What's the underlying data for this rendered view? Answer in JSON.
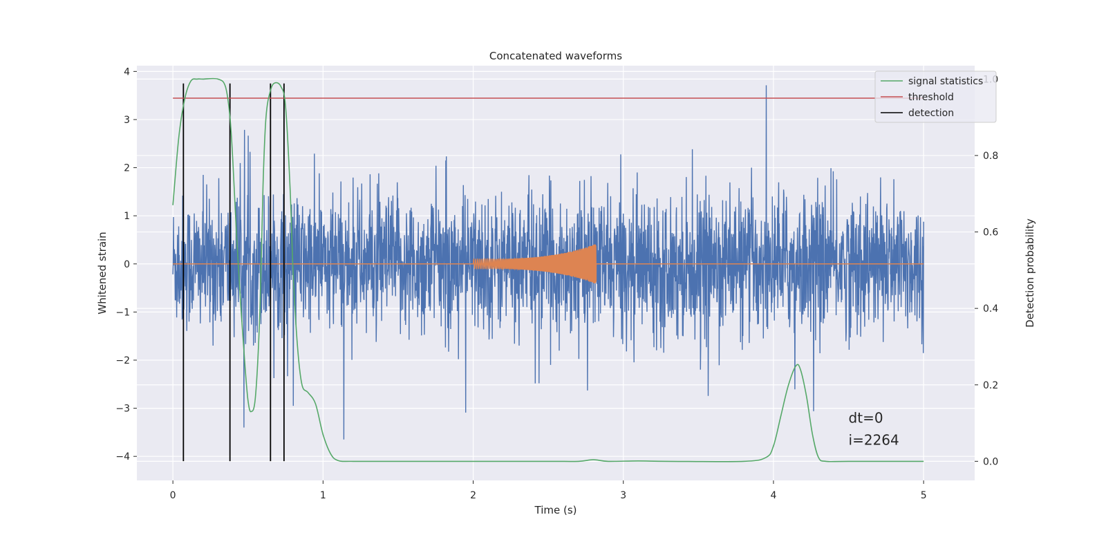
{
  "chart_data": {
    "type": "line",
    "title": "Concatenated waveforms",
    "xlabel": "Time (s)",
    "ylabel": "Whitened strain",
    "ylabel_right": "Detection probability",
    "xlim": [
      -0.24,
      5.34
    ],
    "ylim": [
      -4.5,
      4.12
    ],
    "ylim_right": [
      -0.05,
      1.035
    ],
    "xticks": [
      0,
      1,
      2,
      3,
      4,
      5
    ],
    "yticks": [
      -4,
      -3,
      -2,
      -1,
      0,
      1,
      2,
      3,
      4
    ],
    "yticks_right": [
      0.0,
      0.2,
      0.4,
      0.6,
      0.8,
      1.0
    ],
    "yticks_right_labels": [
      "0.0",
      "0.2",
      "0.4",
      "0.6",
      "0.8",
      "1.0"
    ],
    "grid": true,
    "legend_position": "top-right",
    "colors": {
      "noise": "#4c72b0",
      "waveform": "#dd8452",
      "signal_statistics": "#55a868",
      "threshold": "#c44e52",
      "detection": "#000000",
      "background": "#eaeaf2"
    },
    "series": [
      {
        "name": "signal statistics",
        "axis": "right",
        "x": [
          0.0,
          0.04,
          0.08,
          0.12,
          0.16,
          0.2,
          0.3,
          0.35,
          0.38,
          0.4,
          0.42,
          0.45,
          0.48,
          0.5,
          0.52,
          0.55,
          0.58,
          0.6,
          0.62,
          0.65,
          0.68,
          0.72,
          0.75,
          0.78,
          0.8,
          0.83,
          0.86,
          0.9,
          0.95,
          1.0,
          1.05,
          1.1,
          1.2,
          1.5,
          2.0,
          2.5,
          2.7,
          2.8,
          2.9,
          3.1,
          3.3,
          3.8,
          3.95,
          4.0,
          4.05,
          4.1,
          4.15,
          4.18,
          4.22,
          4.26,
          4.3,
          4.35,
          4.5,
          5.0
        ],
        "y": [
          0.67,
          0.85,
          0.95,
          0.995,
          1.0,
          1.0,
          1.0,
          0.98,
          0.9,
          0.78,
          0.62,
          0.42,
          0.25,
          0.16,
          0.13,
          0.17,
          0.4,
          0.72,
          0.9,
          0.97,
          0.99,
          0.98,
          0.93,
          0.72,
          0.5,
          0.3,
          0.2,
          0.18,
          0.15,
          0.07,
          0.02,
          0.002,
          0.0,
          0.0,
          0.0,
          0.0,
          0.0,
          0.004,
          0.0,
          0.001,
          0.0,
          0.0,
          0.01,
          0.04,
          0.12,
          0.2,
          0.25,
          0.24,
          0.17,
          0.07,
          0.01,
          0.0,
          0.0,
          0.0
        ]
      },
      {
        "name": "threshold",
        "axis": "right",
        "x": [
          0.0,
          5.0
        ],
        "y": [
          0.95,
          0.95
        ]
      },
      {
        "name": "detection",
        "axis": "left",
        "x": [
          0.07,
          0.38,
          0.65,
          0.74
        ],
        "y_range": [
          -4.1,
          3.75
        ]
      }
    ],
    "noise_series": {
      "x_range": [
        0.0,
        5.0
      ],
      "amplitude_sigma": 0.7,
      "y_range": [
        -4.1,
        3.75
      ]
    },
    "waveform_series": {
      "x_range": [
        2.0,
        2.82
      ],
      "start_amplitude": 0.1,
      "peak_amplitude": 0.42,
      "baseline": 0
    },
    "legend": [
      "signal statistics",
      "threshold",
      "detection"
    ],
    "annotations": [
      "dt=0",
      "i=2264"
    ]
  }
}
